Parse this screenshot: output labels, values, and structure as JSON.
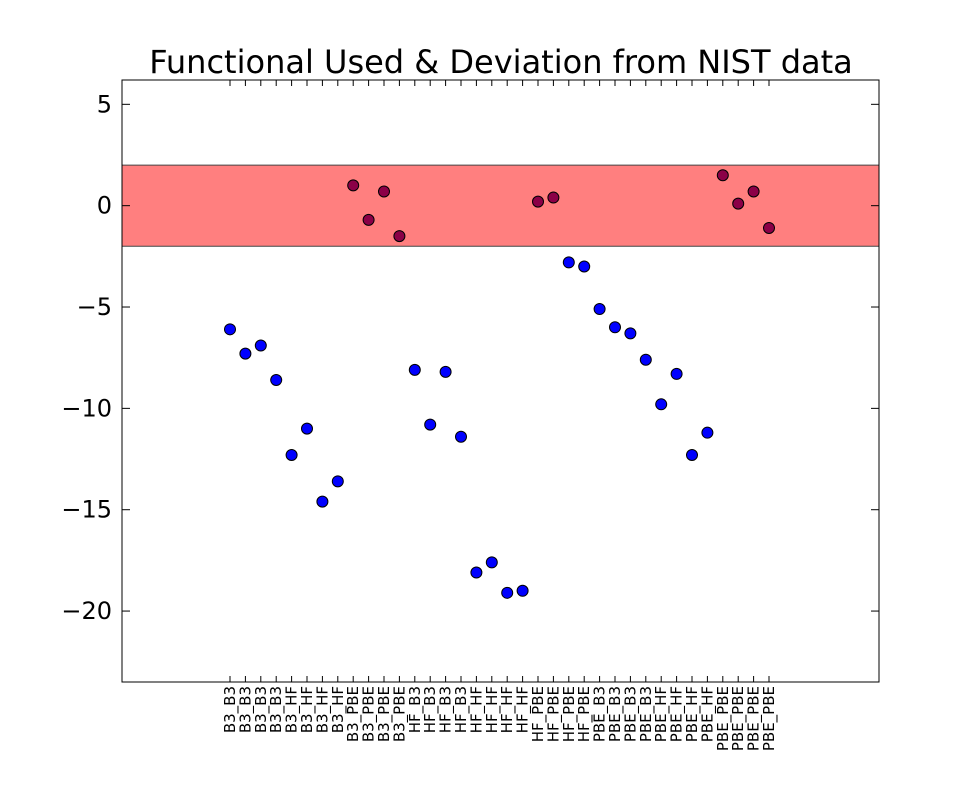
{
  "chart_data": {
    "type": "scatter",
    "title": "Functional Used & Deviation from NIST data",
    "xlabel": "",
    "ylabel": "",
    "ylim": [
      -23.5,
      6.2
    ],
    "yticks": [
      5,
      0,
      -5,
      -10,
      -15,
      -20
    ],
    "ytick_labels": [
      "5",
      "0",
      "−5",
      "−10",
      "−15",
      "−20"
    ],
    "band": {
      "from": -2,
      "to": 2,
      "color": "#ff0000",
      "opacity": 0.5
    },
    "categories": [
      "B3_B3",
      "B3_B3",
      "B3_B3",
      "B3_B3",
      "B3_HF",
      "B3_HF",
      "B3_HF",
      "B3_HF",
      "B3_PBE",
      "B3_PBE",
      "B3_PBE",
      "B3_PBE",
      "HF_B3",
      "HF_B3",
      "HF_B3",
      "HF_B3",
      "HF_HF",
      "HF_HF",
      "HF_HF",
      "HF_HF",
      "HF_PBE",
      "HF_PBE",
      "HF_PBE",
      "HF_PBE",
      "PBE_B3",
      "PBE_B3",
      "PBE_B3",
      "PBE_B3",
      "PBE_HF",
      "PBE_HF",
      "PBE_HF",
      "PBE_HF",
      "PBE_PBE",
      "PBE_PBE",
      "PBE_PBE",
      "PBE_PBE"
    ],
    "values": [
      -6.1,
      -7.3,
      -6.9,
      -8.6,
      -12.3,
      -11.0,
      -14.6,
      -13.6,
      1.0,
      -0.7,
      0.7,
      -1.5,
      -8.1,
      -10.8,
      -8.2,
      -11.4,
      -18.1,
      -17.6,
      -19.1,
      -19.0,
      0.2,
      0.4,
      -2.8,
      -3.0,
      -5.1,
      -6.0,
      -6.3,
      -7.6,
      -9.8,
      -8.3,
      -12.3,
      -11.2,
      1.5,
      0.1,
      0.7,
      -1.1
    ],
    "point_colors": {
      "in_band": "#8b0047",
      "out_band": "#0000ff"
    },
    "grid": false,
    "legend": "none"
  }
}
